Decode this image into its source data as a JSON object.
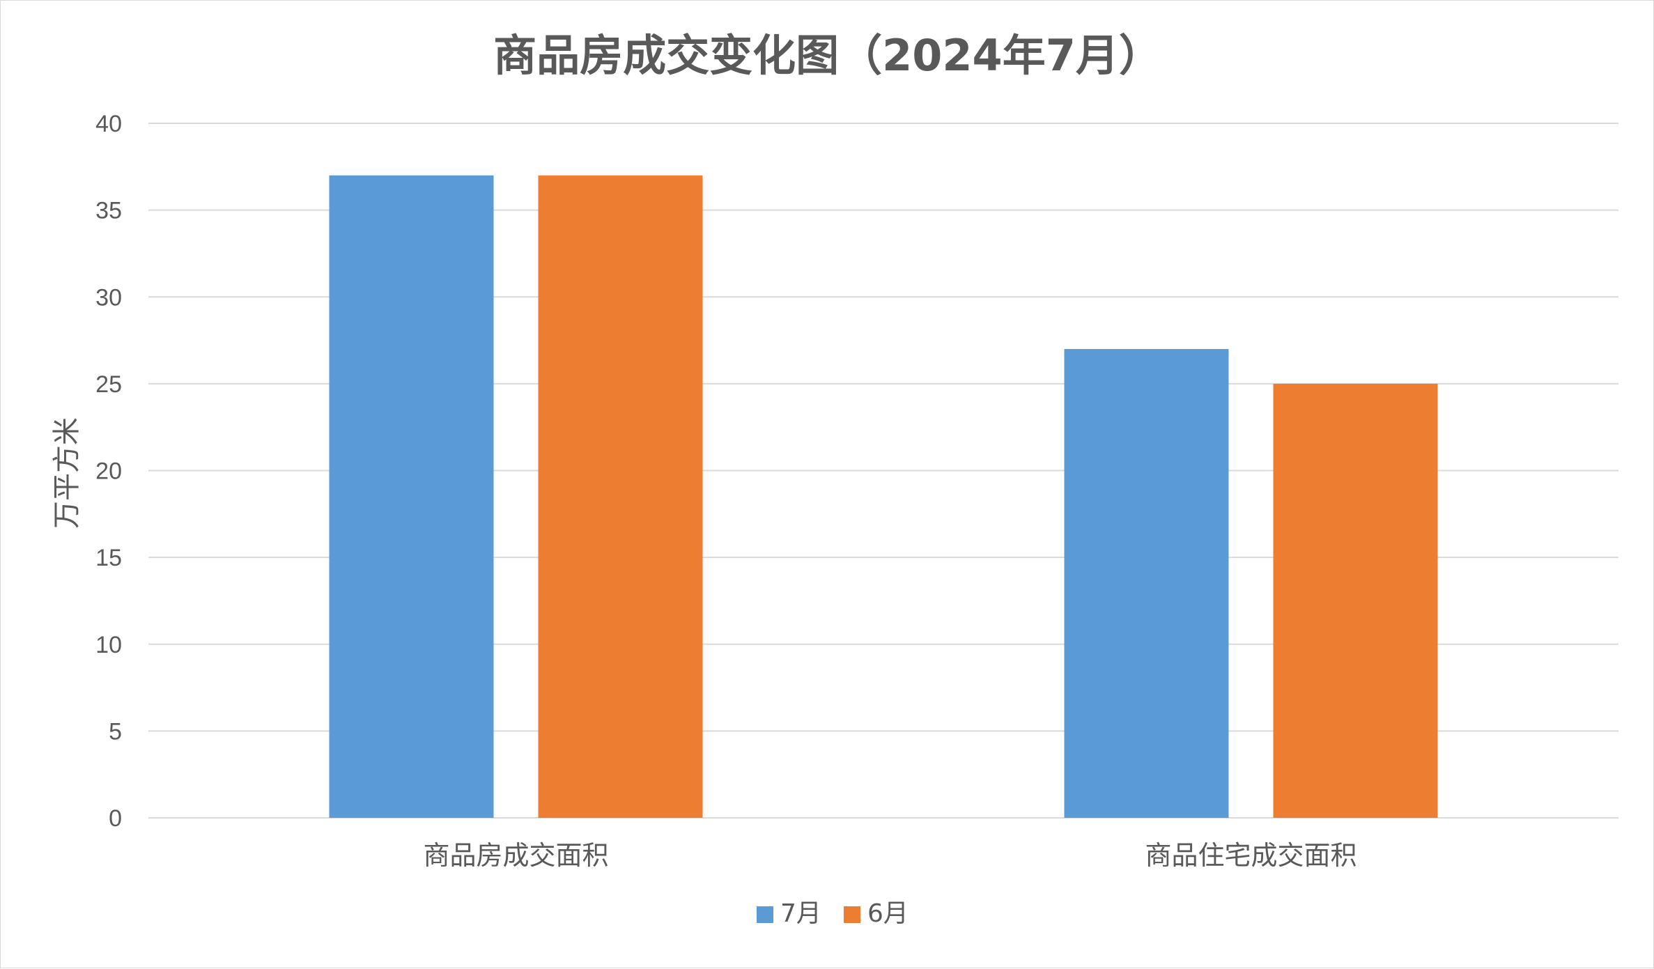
{
  "chart_data": {
    "type": "bar",
    "title": "商品房成交变化图（2024年7月）",
    "ylabel": "万平方米",
    "xlabel": "",
    "categories": [
      "商品房成交面积",
      "商品住宅成交面积"
    ],
    "series": [
      {
        "name": "7月",
        "values": [
          37,
          27
        ],
        "color": "#5b9bd5"
      },
      {
        "name": "6月",
        "values": [
          37,
          25
        ],
        "color": "#ed7d31"
      }
    ],
    "ylim": [
      0,
      40
    ],
    "yticks": [
      0,
      5,
      10,
      15,
      20,
      25,
      30,
      35,
      40
    ],
    "grid": true,
    "legend_position": "bottom"
  }
}
